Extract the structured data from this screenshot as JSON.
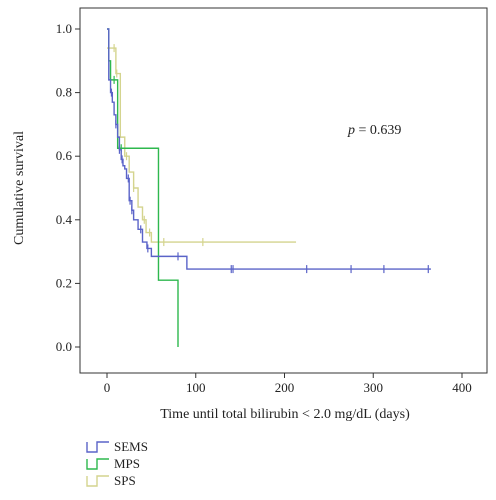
{
  "chart_data": {
    "type": "line",
    "step": "post",
    "xlabel": "Time until total bilirubin < 2.0 mg/dL (days)",
    "ylabel": "Cumulative survival",
    "xlim": [
      0,
      400
    ],
    "ylim": [
      0.0,
      1.0
    ],
    "xticks": [
      0,
      100,
      200,
      300,
      400
    ],
    "yticks": [
      0.0,
      0.2,
      0.4,
      0.6,
      0.8,
      1.0
    ],
    "xtick_labels": [
      "0",
      "100",
      "200",
      "300",
      "400"
    ],
    "ytick_labels": [
      "0.0",
      "0.2",
      "0.4",
      "0.6",
      "0.8",
      "1.0"
    ],
    "grid": false,
    "legend_position": "bottom-left",
    "annotation": {
      "p_symbol": "p",
      "text": " = 0.639"
    },
    "series": [
      {
        "name": "SEMS",
        "color": "#5a63c8",
        "x": [
          0,
          2,
          4,
          6,
          8,
          10,
          12,
          14,
          16,
          18,
          20,
          22,
          25,
          28,
          30,
          35,
          40,
          45,
          50,
          85,
          90,
          365
        ],
        "y": [
          1.0,
          0.84,
          0.8,
          0.77,
          0.73,
          0.7,
          0.66,
          0.62,
          0.59,
          0.57,
          0.56,
          0.53,
          0.46,
          0.43,
          0.4,
          0.37,
          0.33,
          0.31,
          0.285,
          0.285,
          0.245,
          0.245
        ],
        "censored_x": [
          5,
          10,
          14,
          17,
          24,
          26,
          28,
          38,
          46,
          80,
          140,
          142,
          225,
          275,
          312,
          362
        ]
      },
      {
        "name": "MPS",
        "color": "#2eb84e",
        "x": [
          0,
          2,
          4,
          6,
          12,
          40,
          58,
          78,
          80
        ],
        "y": [
          1.0,
          0.9,
          0.84,
          0.84,
          0.625,
          0.625,
          0.21,
          0.21,
          0.0
        ],
        "censored_x": [
          8,
          16
        ]
      },
      {
        "name": "SPS",
        "color": "#d4d48e",
        "x": [
          0,
          3,
          10,
          15,
          20,
          25,
          30,
          35,
          40,
          44,
          50,
          213
        ],
        "y": [
          0.94,
          0.94,
          0.86,
          0.66,
          0.6,
          0.55,
          0.5,
          0.44,
          0.4,
          0.36,
          0.33,
          0.33
        ],
        "censored_x": [
          8,
          11,
          22,
          30,
          42,
          48,
          64,
          108
        ]
      }
    ]
  }
}
